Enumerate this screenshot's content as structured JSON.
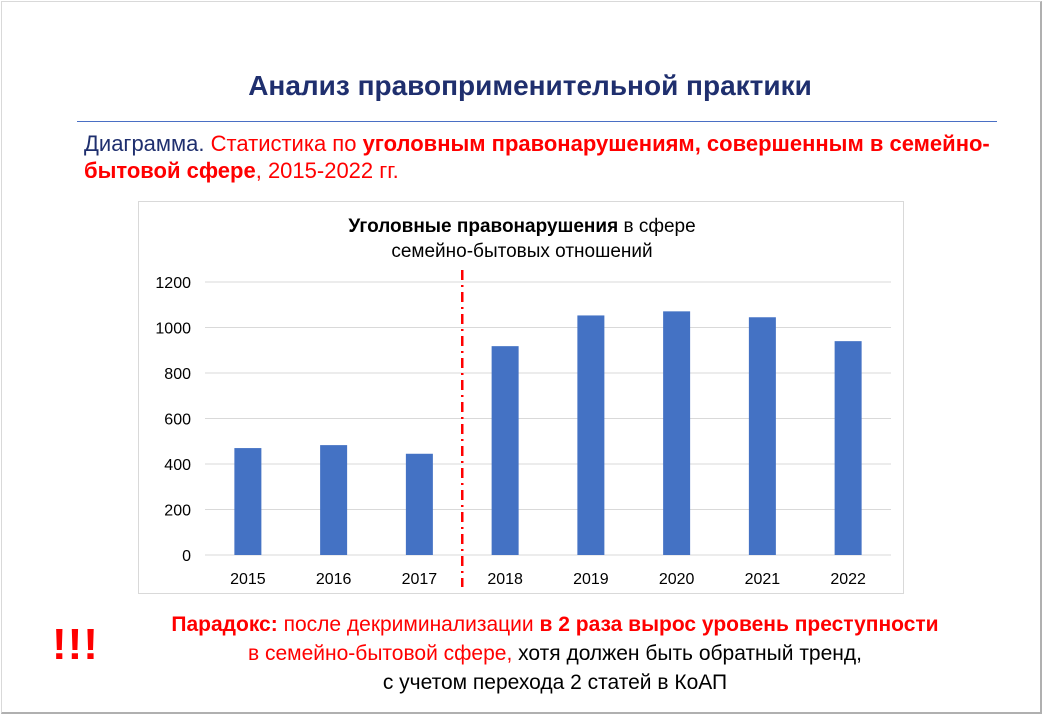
{
  "slide": {
    "title": "Анализ правоприменительной практики",
    "subtitle": {
      "prefix": "Диаграмма.",
      "part1": " Статистика по ",
      "bold": "уголовным правонарушениям, совершенным в семейно-бытовой сфере",
      "suffix": ", 2015-2022 гг."
    },
    "footer": {
      "label": "Парадокс:",
      "text1": " после декриминализации ",
      "bold": "в 2 раза вырос уровень преступности",
      "text2": "в семейно-бытовой сфере,",
      "text3": " хотя должен быть обратный тренд,",
      "line3": "с учетом перехода 2 статей в КоАП"
    },
    "exclaim": "!!!"
  },
  "chart_data": {
    "type": "bar",
    "title_bold": "Уголовные правонарушения",
    "title_rest": " в сфере",
    "title_line2": "семейно-бытовых отношений",
    "categories": [
      "2015",
      "2016",
      "2017",
      "2018",
      "2019",
      "2020",
      "2021",
      "2022"
    ],
    "values": [
      470,
      483,
      445,
      918,
      1053,
      1071,
      1045,
      940
    ],
    "ylim": [
      0,
      1200
    ],
    "yticks": [
      0,
      200,
      400,
      600,
      800,
      1000,
      1200
    ],
    "grid": true,
    "divider_after_index": 2,
    "colors": {
      "bar": "#4472c4",
      "grid": "#d9d9d9",
      "divider": "#ff0000"
    }
  }
}
